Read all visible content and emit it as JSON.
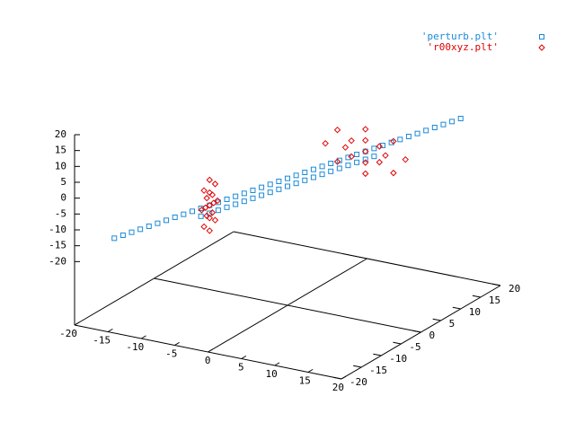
{
  "chart_data": {
    "type": "scatter3d",
    "xlim": [
      -20,
      20
    ],
    "ylim": [
      -20,
      20
    ],
    "zlim": [
      -20,
      20
    ],
    "ticslevel": 0.5,
    "xticks": [
      -20,
      -15,
      -10,
      -5,
      0,
      5,
      10,
      15,
      20
    ],
    "yticks": [
      -20,
      -15,
      -10,
      -5,
      0,
      5,
      10,
      15,
      20
    ],
    "zticks": [
      -20,
      -15,
      -10,
      -5,
      0,
      5,
      10,
      15,
      20
    ],
    "legend": "top-right",
    "series": [
      {
        "name": "'perturb.plt'",
        "color": "#1a8ad8",
        "marker": "square",
        "x": [
          -20,
          -19,
          -18,
          -17,
          -16,
          -15,
          -14,
          -13,
          -12,
          -11,
          -10,
          -9,
          -8,
          -7,
          -6,
          -5,
          -4,
          -3,
          -2,
          -1,
          0,
          1,
          2,
          3,
          4,
          5,
          6,
          7,
          8,
          9,
          10,
          11,
          12,
          13,
          14,
          15,
          16,
          17,
          18,
          19,
          20,
          -10,
          -9,
          -8,
          -7,
          -6,
          -5,
          -4,
          -3,
          -2,
          -1,
          0,
          1,
          2,
          3,
          4,
          5,
          6,
          7,
          8,
          9,
          10
        ],
        "y": [
          -10,
          -9.5,
          -9,
          -8.5,
          -8,
          -7.5,
          -7,
          -6.5,
          -6,
          -5.5,
          -5,
          -4.5,
          -4,
          -3.5,
          -3,
          -2.5,
          -2,
          -1.5,
          -1,
          -0.5,
          0,
          0.5,
          1,
          1.5,
          2,
          2.5,
          3,
          3.5,
          4,
          4.5,
          5,
          5.5,
          6,
          6.5,
          7,
          7.5,
          8,
          8.5,
          9,
          9.5,
          10,
          -5,
          -4.5,
          -4,
          -3.5,
          -3,
          -2.5,
          -2,
          -1.5,
          -1,
          -0.5,
          0,
          0.5,
          1,
          1.5,
          2,
          2.5,
          3,
          3.5,
          4,
          4.5,
          5
        ],
        "z": [
          -20,
          -19,
          -18,
          -17,
          -16,
          -15,
          -14,
          -13,
          -12,
          -11,
          -10,
          -9,
          -8,
          -7,
          -6,
          -5,
          -4,
          -3,
          -2,
          -1,
          0,
          1,
          2,
          3,
          4,
          5,
          6,
          7,
          8,
          9,
          10,
          11,
          12,
          13,
          14,
          15,
          16,
          17,
          18,
          19,
          20,
          -12.5,
          -11.5,
          -10.5,
          -9.5,
          -8.5,
          -7.5,
          -6.5,
          -5.5,
          -4.5,
          -3.5,
          -2.5,
          -1.5,
          -0.5,
          0.5,
          1.5,
          2.5,
          3.5,
          4.5,
          5.5,
          6.5,
          7.5
        ]
      },
      {
        "name": "'r00xyz.plt'",
        "color": "#e00000",
        "marker": "diamond",
        "x": [
          -9,
          -9,
          -9,
          -9,
          -9,
          -9,
          -9,
          -9,
          -9,
          -9,
          -9,
          -9,
          -9,
          -9,
          -9,
          -9,
          -9,
          15,
          13.2,
          9,
          4.8,
          3,
          4.8,
          9,
          13.2,
          12,
          11.1,
          9,
          6.9,
          6,
          6.9,
          9,
          11.1,
          9
        ],
        "y": [
          -2.5,
          -3.1,
          -4.5,
          -5.9,
          -6.5,
          -5.9,
          -4.5,
          -3.1,
          -3.5,
          -3.8,
          -4.5,
          -5.2,
          -5.5,
          -5.2,
          -4.5,
          -3.8,
          -4.5,
          4.5,
          4.5,
          4.5,
          4.5,
          4.5,
          4.5,
          4.5,
          4.5,
          4.5,
          4.5,
          4.5,
          4.5,
          4.5,
          4.5,
          4.5,
          4.5,
          4.5
        ],
        "z": [
          -9,
          -3.3,
          -1,
          -3.3,
          -9,
          -14.7,
          -17,
          -14.7,
          -9,
          -6.2,
          -5,
          -6.2,
          -9,
          -11.8,
          -13,
          -11.8,
          -9,
          9,
          14,
          16,
          14,
          9,
          4,
          2,
          4,
          9,
          11.5,
          12.5,
          11.5,
          9,
          6.5,
          5.5,
          6.5,
          9
        ]
      }
    ]
  }
}
